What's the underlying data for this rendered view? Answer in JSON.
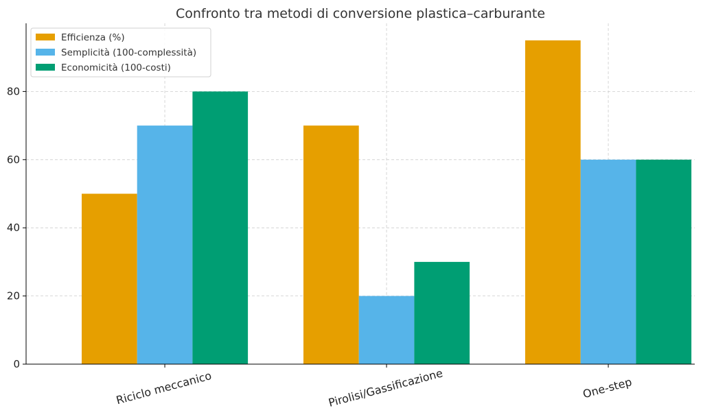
{
  "chart_data": {
    "type": "bar",
    "title": "Confronto tra metodi di conversione plastica–carburante",
    "xlabel": "",
    "ylabel": "",
    "categories": [
      "Riciclo meccanico",
      "Pirolisi/Gassificazione",
      "One-step"
    ],
    "series": [
      {
        "name": "Efficienza (%)",
        "color": "#E69F00",
        "values": [
          50,
          70,
          95
        ]
      },
      {
        "name": "Semplicità (100-complessità)",
        "color": "#56B4E9",
        "values": [
          70,
          20,
          60
        ]
      },
      {
        "name": "Economicità (100-costi)",
        "color": "#009E73",
        "values": [
          80,
          30,
          60
        ]
      }
    ],
    "ylim": [
      0,
      100
    ],
    "yticks": [
      0,
      20,
      40,
      60,
      80
    ],
    "grid": true,
    "legend_position": "top-left",
    "xtick_rotation": 15
  }
}
